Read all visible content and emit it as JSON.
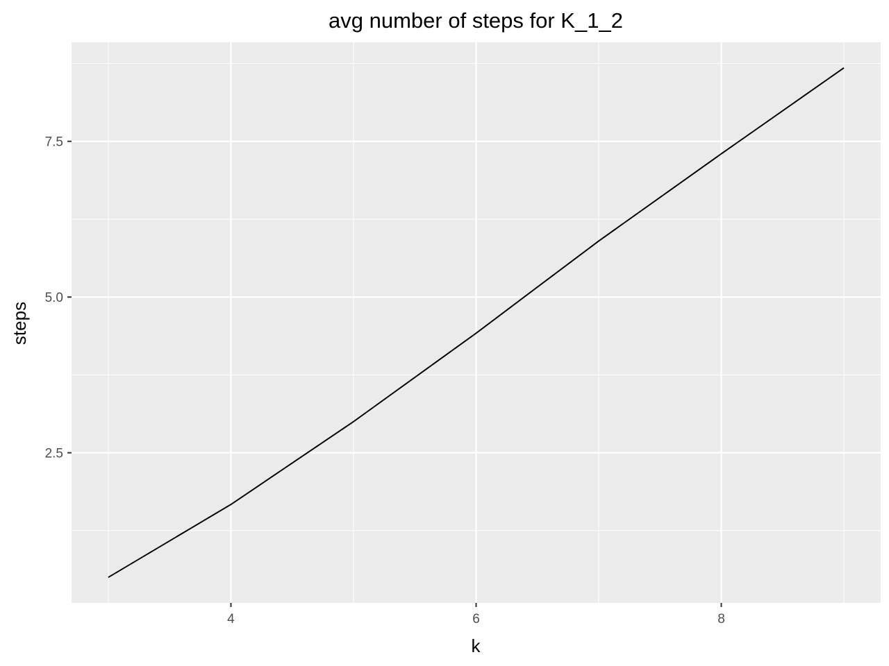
{
  "chart_data": {
    "type": "line",
    "title": "avg number of steps for K_1_2",
    "xlabel": "k",
    "ylabel": "steps",
    "x": [
      3,
      4,
      5,
      6,
      7,
      8,
      9
    ],
    "series": [
      {
        "values": [
          0.5,
          1.67,
          3.0,
          4.42,
          5.9,
          7.3,
          8.68
        ]
      }
    ],
    "xlim": [
      2.7,
      9.3
    ],
    "ylim": [
      0.09,
      9.09
    ],
    "x_ticks": [
      4,
      6,
      8
    ],
    "x_tick_labels": [
      "4",
      "6",
      "8"
    ],
    "x_minor_ticks": [
      3,
      5,
      7,
      9
    ],
    "y_ticks": [
      2.5,
      5.0,
      7.5
    ],
    "y_tick_labels": [
      "2.5",
      "5.0",
      "7.5"
    ],
    "y_minor_ticks": [
      1.25,
      3.75,
      6.25,
      8.75
    ],
    "grid": true,
    "legend": "none",
    "colors": {
      "panel_background": "#ebebeb",
      "grid_major": "#ffffff",
      "grid_minor": "#ffffff",
      "line": "#000000",
      "tick_text": "#4d4d4d",
      "tick_mark": "#333333"
    }
  }
}
